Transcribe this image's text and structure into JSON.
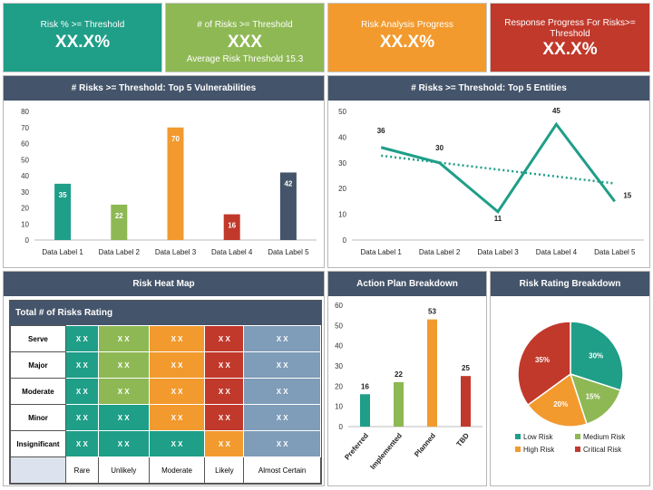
{
  "kpis": [
    {
      "label": "Risk % >= Threshold",
      "value": "XX.X%",
      "sub": "",
      "color": "#1f9e88"
    },
    {
      "label": "# of Risks >= Threshold",
      "value": "XXX",
      "sub": "Average Risk Threshold 15.3",
      "color": "#8eb854"
    },
    {
      "label": "Risk Analysis Progress",
      "value": "XX.X%",
      "sub": "",
      "color": "#f29a2e"
    },
    {
      "label": "Response Progress For Risks>= Threshold",
      "value": "XX.X%",
      "sub": "",
      "color": "#c1392b"
    }
  ],
  "panels": {
    "vuln": "# Risks >= Threshold: Top 5 Vulnerabilities",
    "entities": "# Risks >= Threshold: Top 5 Entities",
    "heatmap": "Risk Heat Map",
    "action": "Action Plan Breakdown",
    "rating": "Risk Rating Breakdown"
  },
  "heatmap": {
    "title": "Total # of Risks Rating",
    "rows": [
      "Serve",
      "Major",
      "Moderate",
      "Minor",
      "Insignificant"
    ],
    "cols": [
      "Rare",
      "Unlikely",
      "Moderate",
      "Likely",
      "Almost Certain"
    ],
    "cell": "X X",
    "colors": [
      [
        "g",
        "lg",
        "o",
        "r",
        "s"
      ],
      [
        "g",
        "lg",
        "o",
        "r",
        "s"
      ],
      [
        "g",
        "lg",
        "o",
        "r",
        "s"
      ],
      [
        "g",
        "g",
        "o",
        "r",
        "s"
      ],
      [
        "g",
        "g",
        "g",
        "o",
        "s"
      ]
    ]
  },
  "chart_data": [
    {
      "type": "bar",
      "categories": [
        "Data Label 1",
        "Data Label 2",
        "Data Label 3",
        "Data Label 4",
        "Data Label 5"
      ],
      "values": [
        35,
        22,
        70,
        16,
        42
      ],
      "colors": [
        "#1f9e88",
        "#8eb854",
        "#f29a2e",
        "#c1392b",
        "#44546a"
      ],
      "ylim": [
        0,
        80
      ],
      "yticks": [
        0,
        10,
        20,
        30,
        40,
        50,
        60,
        70,
        80
      ]
    },
    {
      "type": "line",
      "categories": [
        "Data Label 1",
        "Data Label 2",
        "Data Label 3",
        "Data Label 4",
        "Data Label 5"
      ],
      "values": [
        36,
        30,
        11,
        45,
        15
      ],
      "trendline": true,
      "color": "#1f9e88",
      "ylim": [
        0,
        50
      ],
      "yticks": [
        0,
        10,
        20,
        30,
        40,
        50
      ]
    },
    {
      "type": "bar",
      "categories": [
        "Preferred",
        "Implemented",
        "Planned",
        "TBD"
      ],
      "values": [
        16,
        22,
        53,
        25
      ],
      "colors": [
        "#1f9e88",
        "#8eb854",
        "#f29a2e",
        "#c1392b"
      ],
      "ylim": [
        0,
        60
      ],
      "yticks": [
        0,
        10,
        20,
        30,
        40,
        50,
        60
      ]
    },
    {
      "type": "pie",
      "labels": [
        "Low Risk",
        "Medium Risk",
        "High Risk",
        "Critical Risk"
      ],
      "values": [
        30,
        15,
        20,
        35
      ],
      "colors": [
        "#1f9e88",
        "#8eb854",
        "#f29a2e",
        "#c1392b"
      ],
      "legend": "bottom"
    }
  ]
}
